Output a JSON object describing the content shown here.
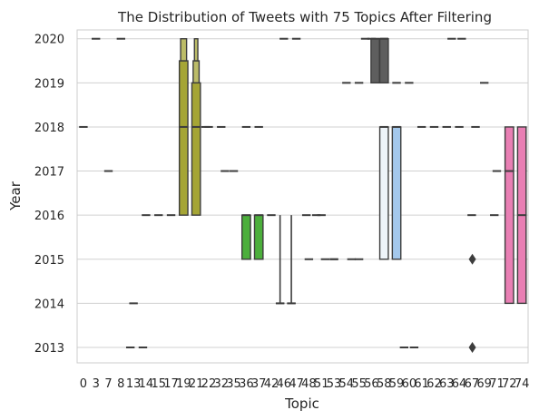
{
  "chart_data": {
    "type": "boxen",
    "title": "The Distribution of Tweets with 75 Topics After Filtering",
    "xlabel": "Topic",
    "ylabel": "Year",
    "ylim": [
      2012.65,
      2020.2
    ],
    "yticks": [
      "2013",
      "2014",
      "2015",
      "2016",
      "2017",
      "2018",
      "2019",
      "2020"
    ],
    "grid": "horizontal",
    "categories": [
      "0",
      "3",
      "7",
      "8",
      "13",
      "14",
      "15",
      "17",
      "19",
      "21",
      "22",
      "32",
      "35",
      "36",
      "37",
      "42",
      "46",
      "47",
      "48",
      "51",
      "53",
      "54",
      "55",
      "56",
      "58",
      "59",
      "60",
      "61",
      "62",
      "63",
      "64",
      "67",
      "69",
      "71",
      "72",
      "74"
    ],
    "series": [
      {
        "topic": "0",
        "median": 2018
      },
      {
        "topic": "3",
        "median": 2020
      },
      {
        "topic": "7",
        "median": 2017
      },
      {
        "topic": "8",
        "median": 2020
      },
      {
        "topic": "13",
        "median": 2014
      },
      {
        "topic": "14",
        "median": 2016
      },
      {
        "topic": "15",
        "median": 2016
      },
      {
        "topic": "17",
        "median": 2016
      },
      {
        "topic": "19",
        "median": 2018,
        "min": 2016,
        "max": 2020,
        "color": "#a5a535",
        "boxes": [
          {
            "low": 2016,
            "high": 2019.5
          },
          {
            "low": 2019.5,
            "high": 2020
          }
        ]
      },
      {
        "topic": "21",
        "median": 2018,
        "min": 2016,
        "max": 2020,
        "color": "#a5a535",
        "boxes": [
          {
            "low": 2016,
            "high": 2019
          },
          {
            "low": 2019,
            "high": 2019.5
          },
          {
            "low": 2019.5,
            "high": 2020
          }
        ]
      },
      {
        "topic": "22",
        "median": 2018
      },
      {
        "topic": "32",
        "median": 2018
      },
      {
        "topic": "35",
        "median": 2017
      },
      {
        "topic": "36",
        "median": 2018
      },
      {
        "topic": "37",
        "median": 2018
      },
      {
        "topic": "42",
        "median": 2016
      },
      {
        "topic": "46",
        "median": 2020
      },
      {
        "topic": "47",
        "median": 2020
      },
      {
        "topic": "48",
        "median": 2015
      },
      {
        "topic": "51",
        "median": 2016
      },
      {
        "topic": "53",
        "median": 2015
      },
      {
        "topic": "54",
        "median": 2019
      },
      {
        "topic": "55",
        "median": 2019
      },
      {
        "topic": "56",
        "median": 2020
      },
      {
        "topic": "58",
        "median": 2020
      },
      {
        "topic": "59",
        "median": 2019
      },
      {
        "topic": "60",
        "median": 2019
      },
      {
        "topic": "61",
        "median": 2018
      },
      {
        "topic": "62",
        "median": 2018
      },
      {
        "topic": "63",
        "median": 2018
      },
      {
        "topic": "64",
        "median": 2018
      },
      {
        "topic": "67",
        "median": 2016
      },
      {
        "topic": "69",
        "median": 2019
      },
      {
        "topic": "71",
        "median": 2017
      },
      {
        "topic": "72",
        "median": 2017,
        "min": 2014,
        "max": 2018,
        "color": "#e97fb4",
        "boxes": [
          {
            "low": 2014,
            "high": 2018
          }
        ]
      },
      {
        "topic": "74",
        "median": 2016,
        "min": 2014,
        "max": 2018,
        "color": "#e97fb4",
        "boxes": [
          {
            "low": 2014,
            "high": 2018
          }
        ]
      }
    ],
    "extra_marks": [
      {
        "x": 3.75,
        "median": 2013
      },
      {
        "x": 4.75,
        "median": 2013
      },
      {
        "x": 9.75,
        "median": 2018
      },
      {
        "x": 11.3,
        "median": 2017
      },
      {
        "x": 13.0,
        "median": 2016,
        "min": 2015,
        "max": 2016,
        "color": "#4caf3c",
        "boxes": [
          {
            "low": 2015,
            "high": 2016
          }
        ]
      },
      {
        "x": 14.0,
        "median": 2016,
        "min": 2015,
        "max": 2016,
        "color": "#4caf3c",
        "boxes": [
          {
            "low": 2015,
            "high": 2016
          }
        ]
      },
      {
        "x": 15.7,
        "median": 2014,
        "min": 2014,
        "max": 2016
      },
      {
        "x": 16.6,
        "median": 2014,
        "min": 2014,
        "max": 2016
      },
      {
        "x": 17.8,
        "median": 2016
      },
      {
        "x": 18.6,
        "median": 2016
      },
      {
        "x": 19.3,
        "median": 2015
      },
      {
        "x": 20.0,
        "median": 2015
      },
      {
        "x": 21.4,
        "median": 2015
      },
      {
        "x": 22.0,
        "median": 2015
      },
      {
        "x": 22.5,
        "median": 2020
      },
      {
        "x": 23.3,
        "median": 2020,
        "min": 2019,
        "max": 2020,
        "color": "#5e5e5e",
        "boxes": [
          {
            "low": 2019,
            "high": 2020
          }
        ]
      },
      {
        "x": 24.0,
        "median": 2020,
        "min": 2019,
        "max": 2020,
        "color": "#5e5e5e",
        "boxes": [
          {
            "low": 2019,
            "high": 2020
          }
        ]
      },
      {
        "x": 24.0,
        "median": 2018,
        "min": 2015,
        "max": 2018,
        "color": "#eef4f9",
        "boxes": [
          {
            "low": 2015,
            "high": 2018
          }
        ]
      },
      {
        "x": 25.0,
        "median": 2018,
        "min": 2015,
        "max": 2018,
        "color": "#a4c8ec",
        "boxes": [
          {
            "low": 2015,
            "high": 2018
          }
        ]
      },
      {
        "x": 25.6,
        "median": 2013
      },
      {
        "x": 26.4,
        "median": 2013
      },
      {
        "x": 29.4,
        "median": 2020
      },
      {
        "x": 30.2,
        "median": 2020
      },
      {
        "x": 31.3,
        "median": 2018
      },
      {
        "x": 32.8,
        "median": 2016
      }
    ],
    "outliers": [
      {
        "x": 31.05,
        "y": 2015
      },
      {
        "x": 31.05,
        "y": 2013
      }
    ]
  }
}
